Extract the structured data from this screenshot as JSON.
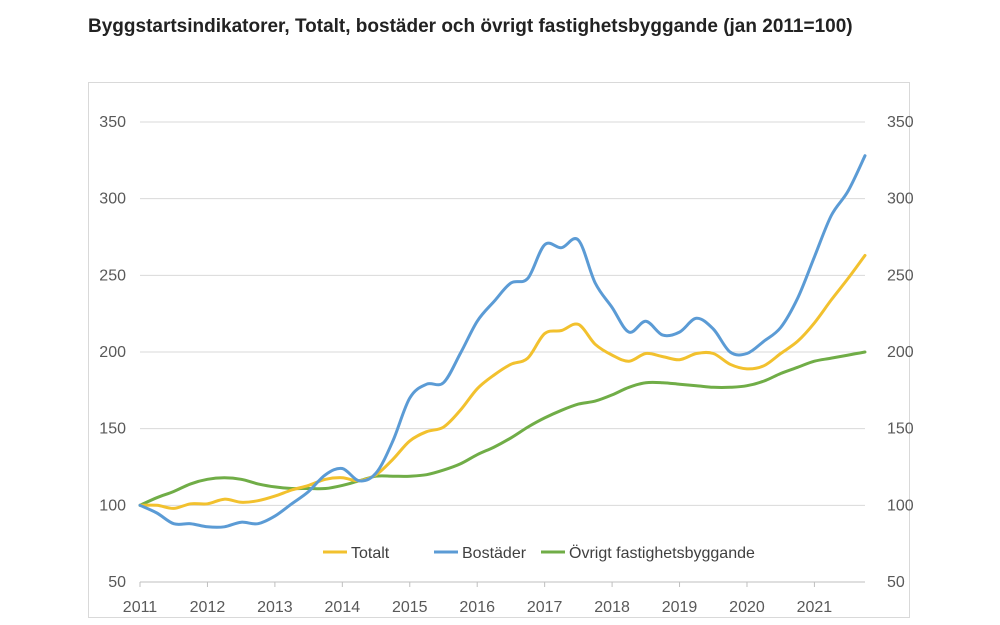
{
  "chart_data": {
    "type": "line",
    "title": "Byggstartsindikatorer, Totalt, bostäder och övrigt fastighetsbyggande (jan 2011=100)",
    "xlabel": "",
    "ylabel": "",
    "ylim": [
      50,
      350
    ],
    "yticks": [
      "350",
      "300",
      "250",
      "200",
      "150",
      "100",
      "50"
    ],
    "xticks": [
      "2011",
      "2012",
      "2013",
      "2014",
      "2015",
      "2016",
      "2017",
      "2018",
      "2019",
      "2020",
      "2021"
    ],
    "grid": true,
    "legend_position": "bottom-center",
    "series": [
      {
        "name": "Totalt",
        "color": "#f2c12e",
        "x": [
          2011.0,
          2011.25,
          2011.5,
          2011.75,
          2012.0,
          2012.25,
          2012.5,
          2012.75,
          2013.0,
          2013.25,
          2013.5,
          2013.75,
          2014.0,
          2014.25,
          2014.5,
          2014.75,
          2015.0,
          2015.25,
          2015.5,
          2015.75,
          2016.0,
          2016.25,
          2016.5,
          2016.75,
          2017.0,
          2017.25,
          2017.5,
          2017.75,
          2018.0,
          2018.25,
          2018.5,
          2018.75,
          2019.0,
          2019.25,
          2019.5,
          2019.75,
          2020.0,
          2020.25,
          2020.5,
          2020.75,
          2021.0,
          2021.25,
          2021.5,
          2021.75
        ],
        "values": [
          100,
          100,
          98,
          101,
          101,
          104,
          102,
          103,
          106,
          110,
          113,
          117,
          118,
          116,
          120,
          130,
          142,
          148,
          151,
          162,
          176,
          185,
          192,
          196,
          212,
          214,
          218,
          205,
          198,
          194,
          199,
          197,
          195,
          199,
          199,
          192,
          189,
          191,
          199,
          207,
          219,
          234,
          248,
          263
        ]
      },
      {
        "name": "Bostäder",
        "color": "#5b9bd5",
        "x": [
          2011.0,
          2011.25,
          2011.5,
          2011.75,
          2012.0,
          2012.25,
          2012.5,
          2012.75,
          2013.0,
          2013.25,
          2013.5,
          2013.75,
          2014.0,
          2014.25,
          2014.5,
          2014.75,
          2015.0,
          2015.25,
          2015.5,
          2015.75,
          2016.0,
          2016.25,
          2016.5,
          2016.75,
          2017.0,
          2017.25,
          2017.5,
          2017.75,
          2018.0,
          2018.25,
          2018.5,
          2018.75,
          2019.0,
          2019.25,
          2019.5,
          2019.75,
          2020.0,
          2020.25,
          2020.5,
          2020.75,
          2021.0,
          2021.25,
          2021.5,
          2021.75
        ],
        "values": [
          100,
          95,
          88,
          88,
          86,
          86,
          89,
          88,
          93,
          101,
          109,
          120,
          124,
          116,
          121,
          142,
          170,
          179,
          180,
          199,
          220,
          233,
          245,
          248,
          270,
          268,
          273,
          245,
          229,
          213,
          220,
          211,
          213,
          222,
          215,
          200,
          199,
          207,
          216,
          235,
          262,
          289,
          305,
          328
        ]
      },
      {
        "name": "Övrigt fastighetsbyggande",
        "color": "#70ad47",
        "x": [
          2011.0,
          2011.25,
          2011.5,
          2011.75,
          2012.0,
          2012.25,
          2012.5,
          2012.75,
          2013.0,
          2013.25,
          2013.5,
          2013.75,
          2014.0,
          2014.25,
          2014.5,
          2014.75,
          2015.0,
          2015.25,
          2015.5,
          2015.75,
          2016.0,
          2016.25,
          2016.5,
          2016.75,
          2017.0,
          2017.25,
          2017.5,
          2017.75,
          2018.0,
          2018.25,
          2018.5,
          2018.75,
          2019.0,
          2019.25,
          2019.5,
          2019.75,
          2020.0,
          2020.25,
          2020.5,
          2020.75,
          2021.0,
          2021.25,
          2021.5,
          2021.75
        ],
        "values": [
          100,
          105,
          109,
          114,
          117,
          118,
          117,
          114,
          112,
          111,
          111,
          111,
          113,
          116,
          119,
          119,
          119,
          120,
          123,
          127,
          133,
          138,
          144,
          151,
          157,
          162,
          166,
          168,
          172,
          177,
          180,
          180,
          179,
          178,
          177,
          177,
          178,
          181,
          186,
          190,
          194,
          196,
          198,
          200
        ]
      }
    ]
  }
}
